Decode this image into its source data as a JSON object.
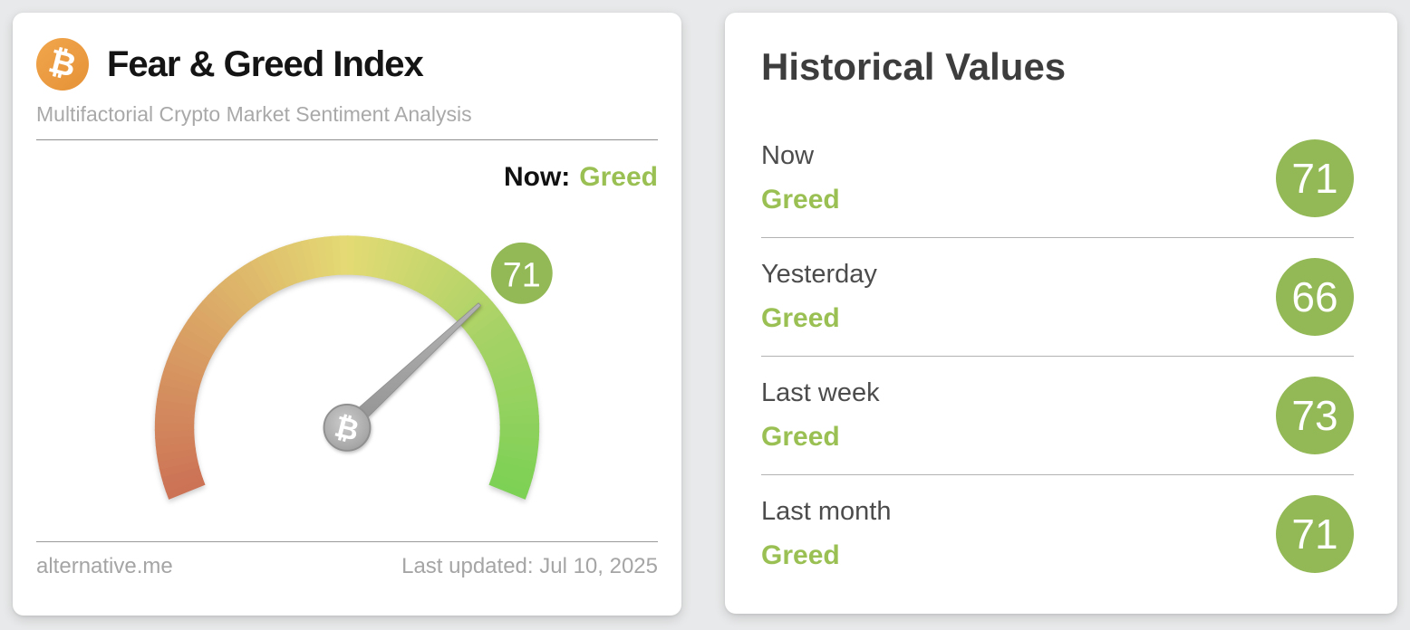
{
  "colors": {
    "page_bg": "#e8e9ea",
    "card_bg": "#ffffff",
    "title_dark": "#141414",
    "heading_gray": "#3d3d3d",
    "subtitle_gray": "#a9a9a9",
    "label_gray": "#4c4c4c",
    "footer_gray": "#a5a5a5",
    "green_text": "#9ac054",
    "green_badge": "#93b856",
    "bitcoin_orange": "#ee9c40",
    "needle_gray": "#a1a1a1"
  },
  "fear_greed_card": {
    "title": "Fear & Greed Index",
    "subtitle": "Multifactorial Crypto Market Sentiment Analysis",
    "bitcoin_symbol": "₿",
    "now_label": "Now:",
    "now_value": "Greed",
    "source": "alternative.me",
    "last_updated": "Last updated: Jul 10, 2025"
  },
  "chart_data": {
    "type": "gauge",
    "title": "Fear & Greed Index",
    "min": 0,
    "max": 100,
    "value": 71,
    "classification": "Greed",
    "start_angle_deg": 202,
    "end_angle_deg": -22,
    "outer_radius": 225,
    "inner_radius": 179,
    "needle_length": 212,
    "hub_radius": 27,
    "center_symbol": "₿",
    "needle_color": "#a1a1a1",
    "color_stops": [
      {
        "pos": 0.0,
        "color": "#cc7155"
      },
      {
        "pos": 0.25,
        "color": "#daa365"
      },
      {
        "pos": 0.5,
        "color": "#e4da74"
      },
      {
        "pos": 0.75,
        "color": "#a8d266"
      },
      {
        "pos": 1.0,
        "color": "#7cd155"
      }
    ],
    "badge": {
      "value": 71,
      "radius": 36,
      "distance": 273,
      "angle_deg": 41.5,
      "color": "#93b856",
      "text_color": "#ffffff"
    }
  },
  "historical": {
    "title": "Historical Values",
    "rows": [
      {
        "label": "Now",
        "classification": "Greed",
        "value": 71
      },
      {
        "label": "Yesterday",
        "classification": "Greed",
        "value": 66
      },
      {
        "label": "Last week",
        "classification": "Greed",
        "value": 73
      },
      {
        "label": "Last month",
        "classification": "Greed",
        "value": 71
      }
    ]
  }
}
